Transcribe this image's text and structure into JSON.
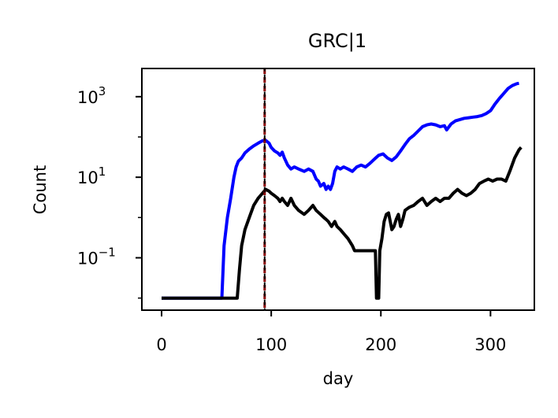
{
  "chart_data": {
    "type": "line",
    "title": "GRC|1",
    "xlabel": "day",
    "ylabel": "Count",
    "xlim": [
      -18,
      340
    ],
    "ylim_log10": [
      -2.3,
      3.7
    ],
    "yscale": "log",
    "x_ticks": [
      0,
      100,
      200,
      300
    ],
    "x_tick_labels": [
      "0",
      "100",
      "200",
      "300"
    ],
    "y_ticks": [
      {
        "value_log10": 3,
        "base": "10",
        "exp": "3"
      },
      {
        "value_log10": 1,
        "base": "10",
        "exp": "1"
      },
      {
        "value_log10": -1,
        "base": "10",
        "exp": "−1"
      }
    ],
    "vline": {
      "x": 94,
      "style": "dashed",
      "colors": [
        "#8b0000",
        "#000000"
      ]
    },
    "series": [
      {
        "color": "#0000ff",
        "points": [
          [
            0,
            0.01
          ],
          [
            55,
            0.01
          ],
          [
            57,
            0.2
          ],
          [
            60,
            1
          ],
          [
            63,
            3
          ],
          [
            66,
            10
          ],
          [
            68,
            18
          ],
          [
            70,
            25
          ],
          [
            73,
            30
          ],
          [
            76,
            40
          ],
          [
            80,
            50
          ],
          [
            84,
            60
          ],
          [
            88,
            70
          ],
          [
            92,
            80
          ],
          [
            95,
            82
          ],
          [
            98,
            70
          ],
          [
            100,
            55
          ],
          [
            103,
            45
          ],
          [
            106,
            40
          ],
          [
            108,
            35
          ],
          [
            110,
            42
          ],
          [
            112,
            30
          ],
          [
            115,
            20
          ],
          [
            118,
            16
          ],
          [
            121,
            18
          ],
          [
            125,
            16
          ],
          [
            130,
            14
          ],
          [
            134,
            16
          ],
          [
            138,
            14
          ],
          [
            141,
            9
          ],
          [
            143,
            8
          ],
          [
            145,
            6
          ],
          [
            148,
            7
          ],
          [
            150,
            5
          ],
          [
            152,
            6
          ],
          [
            154,
            5
          ],
          [
            156,
            7
          ],
          [
            158,
            14
          ],
          [
            160,
            18
          ],
          [
            163,
            16
          ],
          [
            166,
            18
          ],
          [
            170,
            16
          ],
          [
            174,
            14
          ],
          [
            178,
            18
          ],
          [
            182,
            20
          ],
          [
            186,
            18
          ],
          [
            190,
            22
          ],
          [
            194,
            28
          ],
          [
            198,
            35
          ],
          [
            202,
            38
          ],
          [
            206,
            30
          ],
          [
            210,
            26
          ],
          [
            214,
            32
          ],
          [
            218,
            45
          ],
          [
            222,
            65
          ],
          [
            226,
            90
          ],
          [
            230,
            110
          ],
          [
            234,
            140
          ],
          [
            238,
            180
          ],
          [
            242,
            200
          ],
          [
            246,
            210
          ],
          [
            250,
            200
          ],
          [
            254,
            180
          ],
          [
            258,
            190
          ],
          [
            260,
            150
          ],
          [
            264,
            210
          ],
          [
            268,
            250
          ],
          [
            272,
            270
          ],
          [
            276,
            290
          ],
          [
            280,
            300
          ],
          [
            284,
            310
          ],
          [
            288,
            320
          ],
          [
            292,
            340
          ],
          [
            296,
            380
          ],
          [
            300,
            450
          ],
          [
            304,
            650
          ],
          [
            308,
            900
          ],
          [
            312,
            1200
          ],
          [
            316,
            1600
          ],
          [
            320,
            1900
          ],
          [
            324,
            2100
          ],
          [
            326,
            2150
          ]
        ]
      },
      {
        "color": "#000000",
        "points": [
          [
            0,
            0.01
          ],
          [
            69,
            0.01
          ],
          [
            71,
            0.05
          ],
          [
            73,
            0.2
          ],
          [
            76,
            0.5
          ],
          [
            80,
            1
          ],
          [
            84,
            2
          ],
          [
            88,
            3
          ],
          [
            92,
            4
          ],
          [
            95,
            5
          ],
          [
            98,
            4.5
          ],
          [
            100,
            4
          ],
          [
            103,
            3.5
          ],
          [
            106,
            3
          ],
          [
            108,
            2.5
          ],
          [
            110,
            3
          ],
          [
            112,
            2.5
          ],
          [
            115,
            2
          ],
          [
            118,
            3
          ],
          [
            121,
            2
          ],
          [
            125,
            1.5
          ],
          [
            130,
            1.2
          ],
          [
            134,
            1.5
          ],
          [
            138,
            2
          ],
          [
            141,
            1.5
          ],
          [
            145,
            1.2
          ],
          [
            148,
            1
          ],
          [
            150,
            0.9
          ],
          [
            152,
            0.8
          ],
          [
            155,
            0.6
          ],
          [
            158,
            0.8
          ],
          [
            160,
            0.6
          ],
          [
            163,
            0.5
          ],
          [
            166,
            0.4
          ],
          [
            170,
            0.3
          ],
          [
            174,
            0.2
          ],
          [
            176,
            0.15
          ],
          [
            180,
            0.15
          ],
          [
            184,
            0.15
          ],
          [
            188,
            0.15
          ],
          [
            192,
            0.15
          ],
          [
            195,
            0.15
          ],
          [
            196,
            0.01
          ],
          [
            198,
            0.01
          ],
          [
            199,
            0.15
          ],
          [
            201,
            0.3
          ],
          [
            203,
            0.8
          ],
          [
            205,
            1.2
          ],
          [
            207,
            1.3
          ],
          [
            210,
            0.5
          ],
          [
            212,
            0.6
          ],
          [
            214,
            0.9
          ],
          [
            216,
            1.2
          ],
          [
            218,
            0.6
          ],
          [
            220,
            0.9
          ],
          [
            222,
            1.5
          ],
          [
            226,
            1.8
          ],
          [
            230,
            2
          ],
          [
            234,
            2.5
          ],
          [
            238,
            3
          ],
          [
            242,
            2
          ],
          [
            246,
            2.5
          ],
          [
            250,
            3
          ],
          [
            254,
            2.5
          ],
          [
            258,
            3
          ],
          [
            262,
            3
          ],
          [
            266,
            4
          ],
          [
            270,
            5
          ],
          [
            274,
            4
          ],
          [
            278,
            3.5
          ],
          [
            282,
            4
          ],
          [
            286,
            5
          ],
          [
            290,
            7
          ],
          [
            294,
            8
          ],
          [
            298,
            9
          ],
          [
            302,
            8
          ],
          [
            306,
            9
          ],
          [
            310,
            9
          ],
          [
            314,
            8
          ],
          [
            318,
            15
          ],
          [
            322,
            30
          ],
          [
            326,
            48
          ],
          [
            328,
            55
          ]
        ]
      }
    ]
  }
}
